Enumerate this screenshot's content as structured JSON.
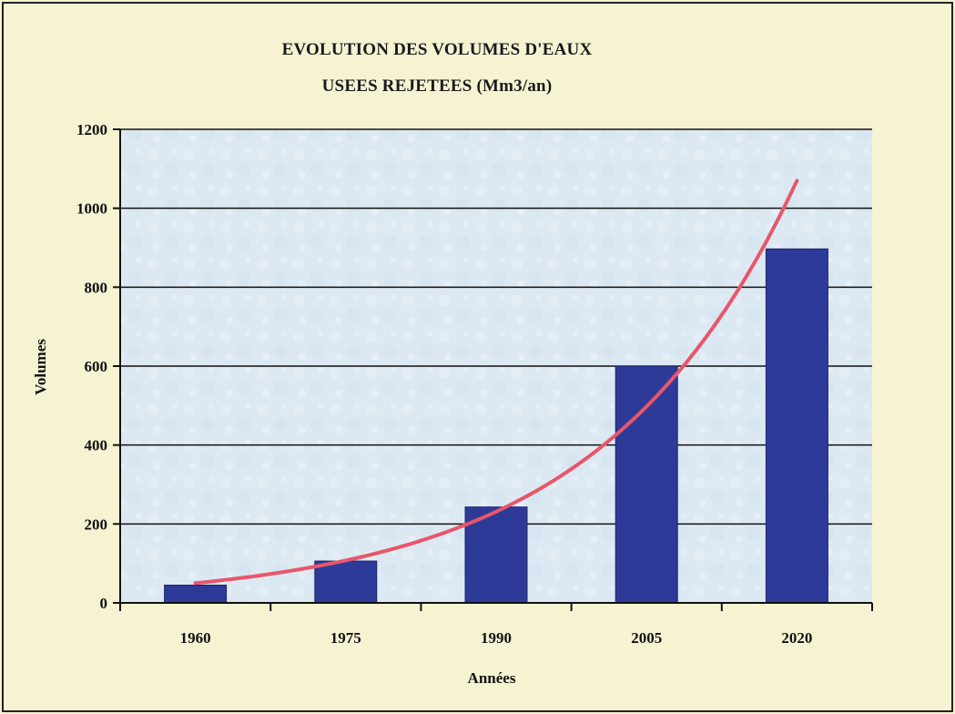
{
  "chart_data": {
    "type": "bar",
    "title_line1": "EVOLUTION DES VOLUMES D'EAUX",
    "title_line2": "USEES REJETEES (Mm3/an)",
    "xlabel": "Années",
    "ylabel": "Volumes",
    "categories": [
      "1960",
      "1975",
      "1990",
      "2005",
      "2020"
    ],
    "values": [
      45,
      106,
      243,
      600,
      897
    ],
    "ylim": [
      0,
      1200
    ],
    "yticks": [
      0,
      200,
      400,
      600,
      800,
      1000,
      1200
    ],
    "trend_curve": {
      "type": "exponential",
      "points": [
        [
          1960,
          50
        ],
        [
          1975,
          100
        ],
        [
          1990,
          220
        ],
        [
          2005,
          480
        ],
        [
          2020,
          1070
        ]
      ]
    },
    "grid": true,
    "legend": "none",
    "colors": {
      "bar": "#2e3a97",
      "trend": "#e8566b",
      "plot_bg": "#dde9f2",
      "page_bg": "#f6f3d3"
    }
  }
}
